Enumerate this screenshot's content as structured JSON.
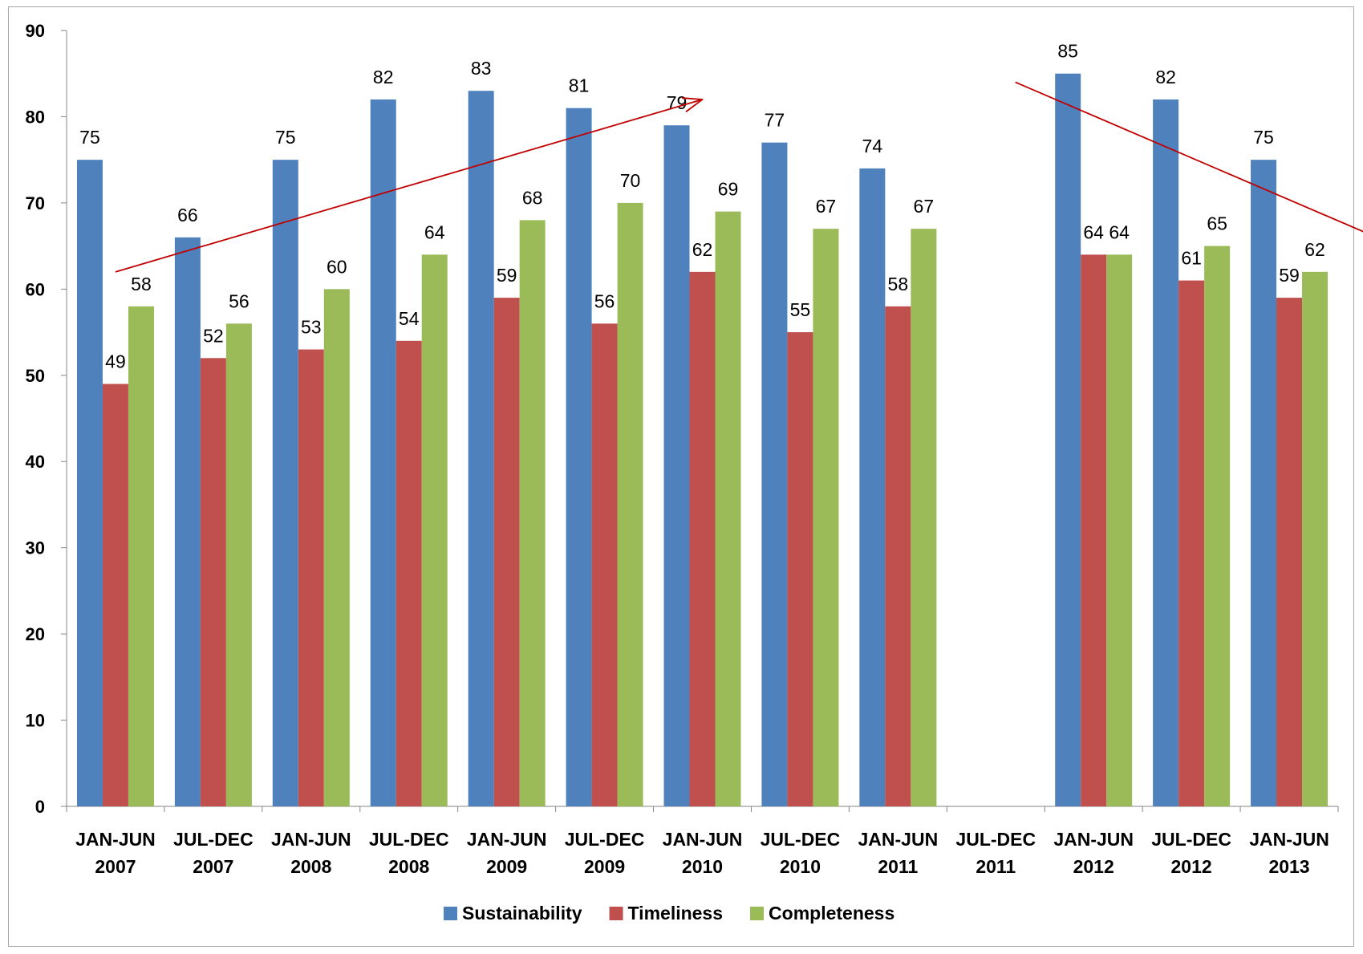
{
  "chart_data": {
    "type": "bar",
    "title": "",
    "xlabel": "",
    "ylabel": "",
    "ylim": [
      0,
      90
    ],
    "yticks": [
      0,
      10,
      20,
      30,
      40,
      50,
      60,
      70,
      80,
      90
    ],
    "grid": false,
    "legend_position": "bottom",
    "categories": [
      [
        "JAN-JUN",
        "2007"
      ],
      [
        "JUL-DEC",
        "2007"
      ],
      [
        "JAN-JUN",
        "2008"
      ],
      [
        "JUL-DEC",
        "2008"
      ],
      [
        "JAN-JUN",
        "2009"
      ],
      [
        "JUL-DEC",
        "2009"
      ],
      [
        "JAN-JUN",
        "2010"
      ],
      [
        "JUL-DEC",
        "2010"
      ],
      [
        "JAN-JUN",
        "2011"
      ],
      [
        "JUL-DEC",
        "2011"
      ],
      [
        "JAN-JUN",
        "2012"
      ],
      [
        "JUL-DEC",
        "2012"
      ],
      [
        "JAN-JUN",
        "2013"
      ]
    ],
    "series": [
      {
        "name": "Sustainability",
        "color": "#4f81bd",
        "values": [
          75,
          66,
          75,
          82,
          83,
          81,
          79,
          77,
          74,
          null,
          85,
          82,
          75
        ]
      },
      {
        "name": "Timeliness",
        "color": "#c0504d",
        "values": [
          49,
          52,
          53,
          54,
          59,
          56,
          62,
          55,
          58,
          null,
          64,
          61,
          59
        ]
      },
      {
        "name": "Completeness",
        "color": "#9bbb59",
        "values": [
          58,
          56,
          60,
          64,
          68,
          70,
          69,
          67,
          67,
          null,
          64,
          65,
          62
        ]
      }
    ],
    "annotations": [
      {
        "type": "trend-arrow",
        "color": "#c00000",
        "direction": "up",
        "from": {
          "category": 0,
          "y": 62
        },
        "to": {
          "category": 6,
          "y": 82
        }
      },
      {
        "type": "trend-arrow",
        "color": "#c00000",
        "direction": "down",
        "from": {
          "category": 9.2,
          "y": 84
        },
        "to": {
          "category": 13.1,
          "y": 65
        }
      }
    ]
  }
}
